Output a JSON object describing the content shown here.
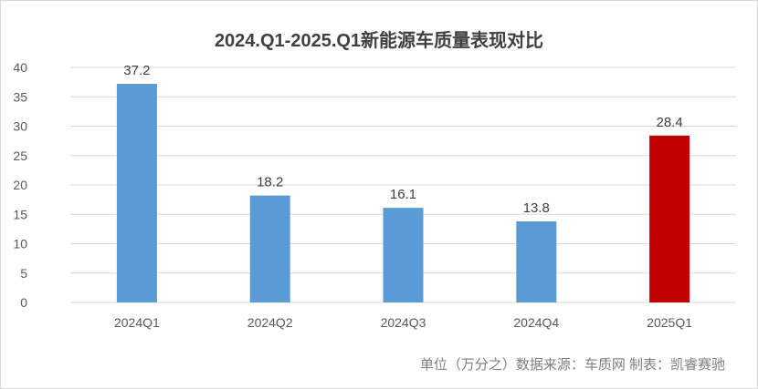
{
  "chart_data": {
    "type": "bar",
    "title": "2024.Q1-2025.Q1新能源车质量表现对比",
    "categories": [
      "2024Q1",
      "2024Q2",
      "2024Q3",
      "2024Q4",
      "2025Q1"
    ],
    "values": [
      37.2,
      18.2,
      16.1,
      13.8,
      28.4
    ],
    "data_labels": [
      "37.2",
      "18.2",
      "16.1",
      "13.8",
      "28.4"
    ],
    "bar_colors": [
      "#5B9BD5",
      "#5B9BD5",
      "#5B9BD5",
      "#5B9BD5",
      "#C00000"
    ],
    "ylim": [
      0,
      40
    ],
    "yticks": [
      0,
      5,
      10,
      15,
      20,
      25,
      30,
      35,
      40
    ],
    "grid": true,
    "xlabel": "",
    "ylabel": ""
  },
  "footer": "单位（万分之）数据来源：车质网 制表：凯睿赛驰"
}
